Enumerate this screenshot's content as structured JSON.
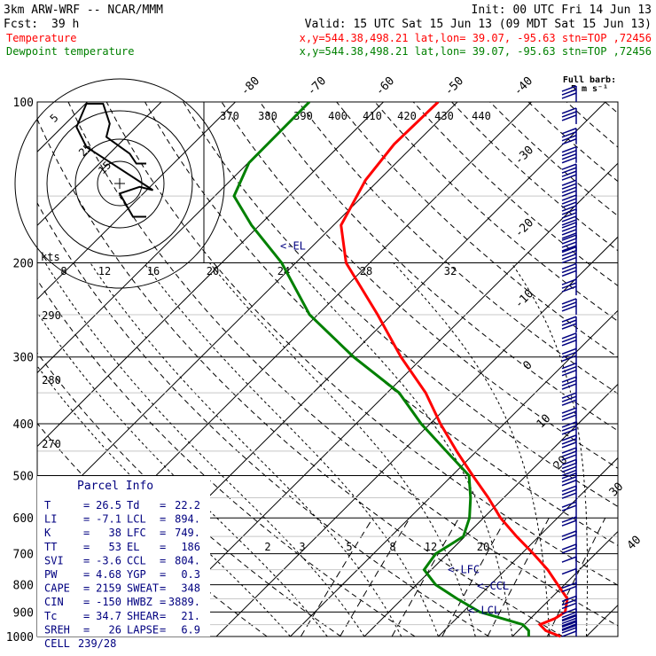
{
  "header": {
    "model": "3km ARW-WRF -- NCAR/MMM",
    "init": "Init: 00 UTC Fri 14 Jun 13",
    "fcst_label": "Fcst:",
    "fcst_value": "39 h",
    "valid": "Valid: 15 UTC Sat 15 Jun 13 (09 MDT Sat 15 Jun 13)",
    "temperature_label": "Temperature",
    "dewpoint_label": "Dewpoint temperature",
    "location": "x,y=544.38,498.21    lat,lon= 39.07, -95.63   stn=TOP ,72456",
    "temp_color": "#ff0000",
    "dew_color": "#008000"
  },
  "chart_data": {
    "type": "line",
    "chart_kind": "skew-T log-P diagram",
    "y_scale": "log",
    "ylim": [
      1000,
      100
    ],
    "y_ticks": [
      "100",
      "200",
      "300",
      "400",
      "500",
      "600",
      "700",
      "800",
      "900",
      "1000"
    ],
    "isotherm_labels": [
      "-80",
      "-70",
      "-60",
      "-50",
      "-40",
      "-30",
      "-20",
      "-10",
      "0",
      "10",
      "20",
      "30",
      "40"
    ],
    "theta_labels": [
      "370",
      "380",
      "390",
      "400",
      "410",
      "420",
      "430",
      "440",
      "290",
      "280",
      "270"
    ],
    "mixing_ratio_labels": [
      "2",
      "3",
      "5",
      "8",
      "12",
      "20"
    ],
    "series": [
      {
        "name": "Temperature",
        "color": "#ff0000",
        "points": [
          [
            1000,
            26.5
          ],
          [
            975,
            23.7
          ],
          [
            950,
            22.1
          ],
          [
            925,
            23.3
          ],
          [
            900,
            23.8
          ],
          [
            850,
            22.3
          ],
          [
            800,
            19.1
          ],
          [
            750,
            15.7
          ],
          [
            700,
            11.6
          ],
          [
            650,
            7.0
          ],
          [
            600,
            2.3
          ],
          [
            550,
            -2.1
          ],
          [
            500,
            -7.2
          ],
          [
            450,
            -12.7
          ],
          [
            400,
            -18.6
          ],
          [
            350,
            -24.8
          ],
          [
            300,
            -33.0
          ],
          [
            250,
            -41.9
          ],
          [
            200,
            -53.2
          ],
          [
            170,
            -59.0
          ],
          [
            140,
            -61.8
          ],
          [
            120,
            -62.8
          ],
          [
            100,
            -62.6
          ]
        ]
      },
      {
        "name": "Dewpoint temperature",
        "color": "#008000",
        "points": [
          [
            1000,
            22.2
          ],
          [
            975,
            21.4
          ],
          [
            950,
            19.8
          ],
          [
            925,
            16.1
          ],
          [
            900,
            12.3
          ],
          [
            850,
            7.4
          ],
          [
            800,
            2.6
          ],
          [
            750,
            -1.0
          ],
          [
            700,
            -1.6
          ],
          [
            650,
            -0.2
          ],
          [
            600,
            -1.9
          ],
          [
            550,
            -4.5
          ],
          [
            500,
            -7.7
          ],
          [
            450,
            -14.1
          ],
          [
            400,
            -21.2
          ],
          [
            350,
            -28.4
          ],
          [
            300,
            -39.4
          ],
          [
            250,
            -51.1
          ],
          [
            200,
            -61.9
          ],
          [
            170,
            -71.1
          ],
          [
            150,
            -77.4
          ],
          [
            130,
            -79.9
          ],
          [
            100,
            -80.0
          ]
        ]
      }
    ],
    "annotations": [
      {
        "text": "<-EL",
        "p": 186
      },
      {
        "text": "<-LFC",
        "p": 749
      },
      {
        "text": "<-CCL",
        "p": 804
      },
      {
        "text": "<-LCL",
        "p": 894
      }
    ],
    "hodograph": {
      "ring_labels": [
        "5",
        "25",
        "15"
      ],
      "speed_axis_label": "kts",
      "speed_ticks": [
        "8",
        "12",
        "16",
        "20",
        "24",
        "28",
        "32"
      ],
      "trace_uv": [
        [
          8,
          -10
        ],
        [
          4,
          -10
        ],
        [
          0,
          -3
        ],
        [
          6,
          -1
        ],
        [
          10,
          -2
        ],
        [
          -10,
          11
        ],
        [
          -13,
          17
        ],
        [
          -10,
          24
        ],
        [
          -5,
          24
        ],
        [
          -3,
          18
        ],
        [
          -4,
          14
        ],
        [
          3,
          9
        ],
        [
          5,
          6
        ],
        [
          8,
          6
        ]
      ]
    },
    "wind_barbs": {
      "legend_title": "Full barb:",
      "legend_value": "5 m s⁻¹",
      "color": "#000080"
    }
  },
  "parcel_info": {
    "title": "Parcel Info",
    "rows": [
      [
        {
          "label": "T",
          "value": "26.5"
        },
        {
          "label": "Td",
          "value": "22.2"
        }
      ],
      [
        {
          "label": "LI",
          "value": "-7.1"
        },
        {
          "label": "LCL",
          "value": "894."
        }
      ],
      [
        {
          "label": "K",
          "value": "38"
        },
        {
          "label": "LFC",
          "value": "749."
        }
      ],
      [
        {
          "label": "TT",
          "value": "53"
        },
        {
          "label": "EL",
          "value": "186"
        }
      ],
      [
        {
          "label": "SVI",
          "value": "-3.6"
        },
        {
          "label": "CCL",
          "value": "804."
        }
      ],
      [
        {
          "label": "PW",
          "value": "4.68"
        },
        {
          "label": "YGP",
          "value": "0.3"
        }
      ],
      [
        {
          "label": "CAPE",
          "value": "2159"
        },
        {
          "label": "SWEAT",
          "value": "348"
        }
      ],
      [
        {
          "label": "CIN",
          "value": "-150"
        },
        {
          "label": "HWBZ",
          "value": "3889."
        }
      ],
      [
        {
          "label": "Tc",
          "value": "34.7"
        },
        {
          "label": "SHEAR",
          "value": "21."
        }
      ],
      [
        {
          "label": "SREH",
          "value": "26"
        },
        {
          "label": "LAPSE",
          "value": "6.9"
        }
      ],
      [
        {
          "label": "CELL",
          "value": "239/28"
        }
      ]
    ]
  }
}
